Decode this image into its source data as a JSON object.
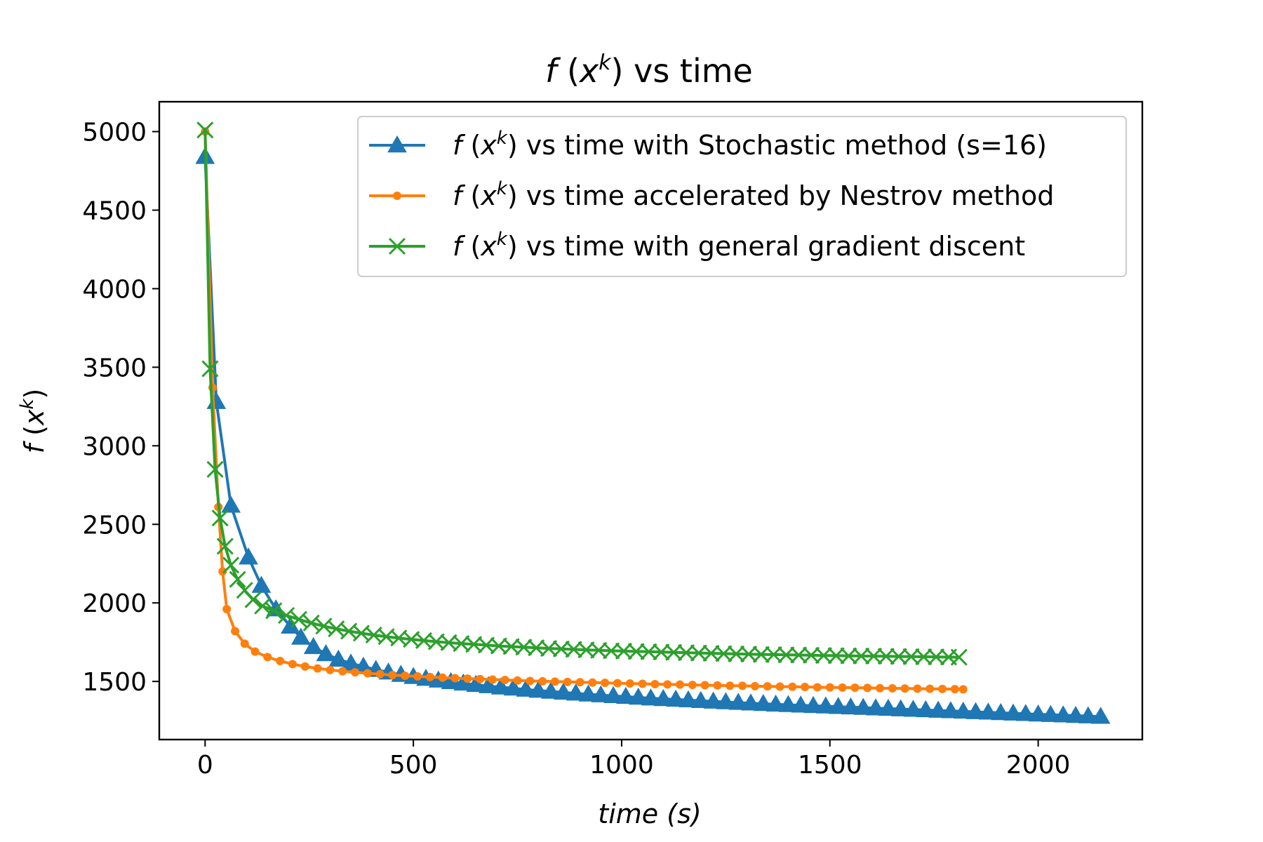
{
  "chart_data": {
    "type": "line",
    "title": {
      "func": "f",
      "var": "x",
      "sup": "k",
      "rest": " vs time"
    },
    "xlabel": {
      "main": "time",
      "unit": "(s)"
    },
    "ylabel": {
      "func": "f",
      "var": "x",
      "sup": "k"
    },
    "xlim": [
      -110,
      2250
    ],
    "ylim": [
      1130,
      5190
    ],
    "xticks": [
      {
        "value": 0,
        "label": "0"
      },
      {
        "value": 500,
        "label": "500"
      },
      {
        "value": 1000,
        "label": "1000"
      },
      {
        "value": 1500,
        "label": "1500"
      },
      {
        "value": 2000,
        "label": "2000"
      }
    ],
    "yticks": [
      {
        "value": 1500,
        "label": "1500"
      },
      {
        "value": 2000,
        "label": "2000"
      },
      {
        "value": 2500,
        "label": "2500"
      },
      {
        "value": 3000,
        "label": "3000"
      },
      {
        "value": 3500,
        "label": "3500"
      },
      {
        "value": 4000,
        "label": "4000"
      },
      {
        "value": 4500,
        "label": "4500"
      },
      {
        "value": 5000,
        "label": "5000"
      }
    ],
    "legend_position": "top-right",
    "series": [
      {
        "name": "vs time with Stochastic method (s=16)",
        "legend": {
          "func": "f",
          "var": "x",
          "sup": "k",
          "rest": " vs time with Stochastic method (s=16)"
        },
        "color": "#1f77b4",
        "marker": "triangle",
        "x": [
          0,
          27,
          62,
          104,
          135,
          170,
          205,
          230,
          260,
          290,
          320,
          350,
          380,
          410,
          440,
          470,
          500,
          530,
          560,
          590,
          620,
          650,
          680,
          710,
          740,
          770,
          800,
          830,
          860,
          890,
          920,
          950,
          980,
          1010,
          1040,
          1070,
          1100,
          1130,
          1160,
          1190,
          1220,
          1250,
          1280,
          1310,
          1340,
          1370,
          1400,
          1430,
          1460,
          1490,
          1520,
          1550,
          1580,
          1610,
          1640,
          1670,
          1700,
          1730,
          1760,
          1790,
          1820,
          1850,
          1880,
          1910,
          1940,
          1970,
          2000,
          2030,
          2060,
          2090,
          2120,
          2150
        ],
        "y": [
          4840,
          3280,
          2620,
          2290,
          2110,
          1960,
          1850,
          1780,
          1720,
          1675,
          1640,
          1615,
          1595,
          1575,
          1558,
          1543,
          1530,
          1518,
          1507,
          1497,
          1488,
          1479,
          1471,
          1463,
          1456,
          1449,
          1442,
          1436,
          1430,
          1424,
          1418,
          1413,
          1408,
          1403,
          1398,
          1393,
          1389,
          1385,
          1381,
          1377,
          1373,
          1369,
          1365,
          1361,
          1358,
          1354,
          1351,
          1348,
          1345,
          1342,
          1339,
          1336,
          1333,
          1330,
          1327,
          1324,
          1321,
          1318,
          1315,
          1312,
          1309,
          1306,
          1303,
          1300,
          1297,
          1294,
          1291,
          1288,
          1285,
          1282,
          1279,
          1276
        ]
      },
      {
        "name": "vs time accelerated by Nestrov method",
        "legend": {
          "func": "f",
          "var": "x",
          "sup": "k",
          "rest": " vs time accelerated by Nestrov method"
        },
        "color": "#ff7f0e",
        "marker": "dot",
        "x": [
          0,
          18,
          32,
          42,
          52,
          72,
          95,
          120,
          150,
          180,
          210,
          240,
          270,
          300,
          330,
          360,
          390,
          420,
          450,
          480,
          510,
          540,
          570,
          600,
          630,
          660,
          690,
          720,
          750,
          780,
          810,
          840,
          870,
          900,
          930,
          960,
          990,
          1020,
          1050,
          1080,
          1110,
          1140,
          1170,
          1200,
          1230,
          1260,
          1290,
          1320,
          1350,
          1380,
          1410,
          1440,
          1470,
          1500,
          1530,
          1560,
          1590,
          1620,
          1650,
          1680,
          1710,
          1740,
          1770,
          1800,
          1820
        ],
        "y": [
          5000,
          3370,
          2610,
          2200,
          1960,
          1820,
          1740,
          1690,
          1655,
          1630,
          1610,
          1595,
          1583,
          1573,
          1565,
          1558,
          1552,
          1546,
          1541,
          1536,
          1532,
          1528,
          1524,
          1521,
          1518,
          1515,
          1512,
          1509,
          1506,
          1503,
          1501,
          1499,
          1497,
          1495,
          1493,
          1491,
          1489,
          1487,
          1485,
          1483,
          1481,
          1480,
          1478,
          1476,
          1475,
          1473,
          1472,
          1470,
          1469,
          1467,
          1466,
          1465,
          1463,
          1462,
          1461,
          1460,
          1459,
          1457,
          1456,
          1455,
          1454,
          1453,
          1452,
          1451,
          1450
        ]
      },
      {
        "name": "vs time with general gradient discent",
        "legend": {
          "func": "f",
          "var": "x",
          "sup": "k",
          "rest": " vs time with general gradient discent"
        },
        "color": "#2ca02c",
        "marker": "x",
        "x": [
          0,
          12,
          24,
          36,
          48,
          62,
          78,
          95,
          115,
          138,
          165,
          195,
          225,
          255,
          285,
          315,
          345,
          375,
          405,
          435,
          465,
          495,
          525,
          555,
          585,
          615,
          645,
          675,
          705,
          735,
          765,
          795,
          825,
          855,
          885,
          915,
          945,
          975,
          1005,
          1035,
          1065,
          1095,
          1125,
          1155,
          1185,
          1215,
          1245,
          1275,
          1305,
          1335,
          1365,
          1395,
          1425,
          1455,
          1485,
          1515,
          1545,
          1575,
          1605,
          1635,
          1665,
          1695,
          1725,
          1755,
          1785,
          1810
        ],
        "y": [
          5010,
          3490,
          2850,
          2540,
          2360,
          2240,
          2150,
          2080,
          2020,
          1980,
          1950,
          1920,
          1895,
          1872,
          1852,
          1835,
          1820,
          1807,
          1795,
          1785,
          1776,
          1768,
          1760,
          1753,
          1747,
          1741,
          1736,
          1731,
          1726,
          1722,
          1718,
          1714,
          1710,
          1707,
          1704,
          1701,
          1698,
          1695,
          1693,
          1691,
          1689,
          1687,
          1685,
          1683,
          1681,
          1679,
          1677,
          1675,
          1674,
          1672,
          1671,
          1669,
          1668,
          1667,
          1665,
          1664,
          1663,
          1662,
          1661,
          1660,
          1659,
          1658,
          1657,
          1656,
          1655,
          1654
        ]
      }
    ]
  }
}
